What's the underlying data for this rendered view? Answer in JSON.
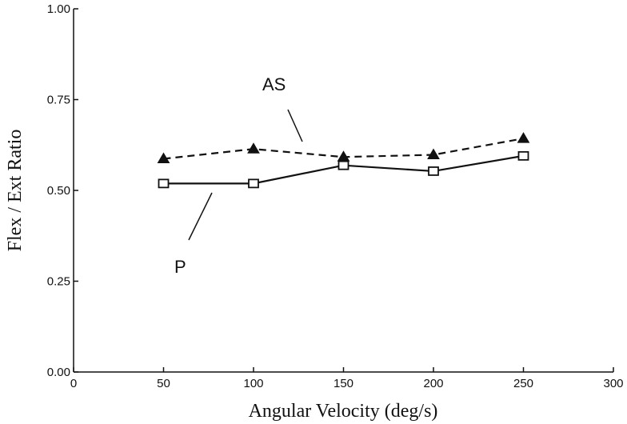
{
  "chart_data": {
    "type": "line",
    "title": "",
    "xlabel": "Angular Velocity (deg/s)",
    "ylabel": "Flex / Ext Ratio",
    "xlim": [
      0,
      300
    ],
    "ylim": [
      0.0,
      1.0
    ],
    "x_ticks": [
      0,
      50,
      100,
      150,
      200,
      250,
      300
    ],
    "x_tick_labels": [
      "0",
      "50",
      "100",
      "150",
      "200",
      "250",
      "300"
    ],
    "y_ticks": [
      0.0,
      0.25,
      0.5,
      0.75,
      1.0
    ],
    "y_tick_labels": [
      "0.00",
      "0.25",
      "0.50",
      "0.75",
      "1.00"
    ],
    "grid": false,
    "legend": "none",
    "x": [
      50,
      100,
      150,
      200,
      250
    ],
    "series": [
      {
        "name": "AS",
        "values": [
          0.587,
          0.614,
          0.592,
          0.598,
          0.643
        ],
        "line_style": "dashed",
        "marker": "filled-triangle",
        "color": "#111111"
      },
      {
        "name": "P",
        "values": [
          0.519,
          0.519,
          0.569,
          0.553,
          0.595
        ],
        "line_style": "solid",
        "marker": "open-square",
        "color": "#111111"
      }
    ],
    "annotations": [
      {
        "text": "AS",
        "series": "AS"
      },
      {
        "text": "P",
        "series": "P"
      }
    ]
  }
}
